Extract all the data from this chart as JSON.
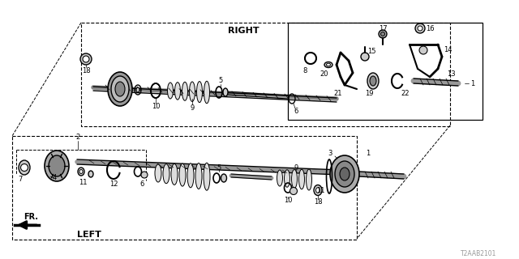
{
  "bg_color": "#ffffff",
  "diagram_code": "T2AAB2101",
  "right_label": "RIGHT",
  "left_label": "LEFT",
  "fr_label": "FR."
}
